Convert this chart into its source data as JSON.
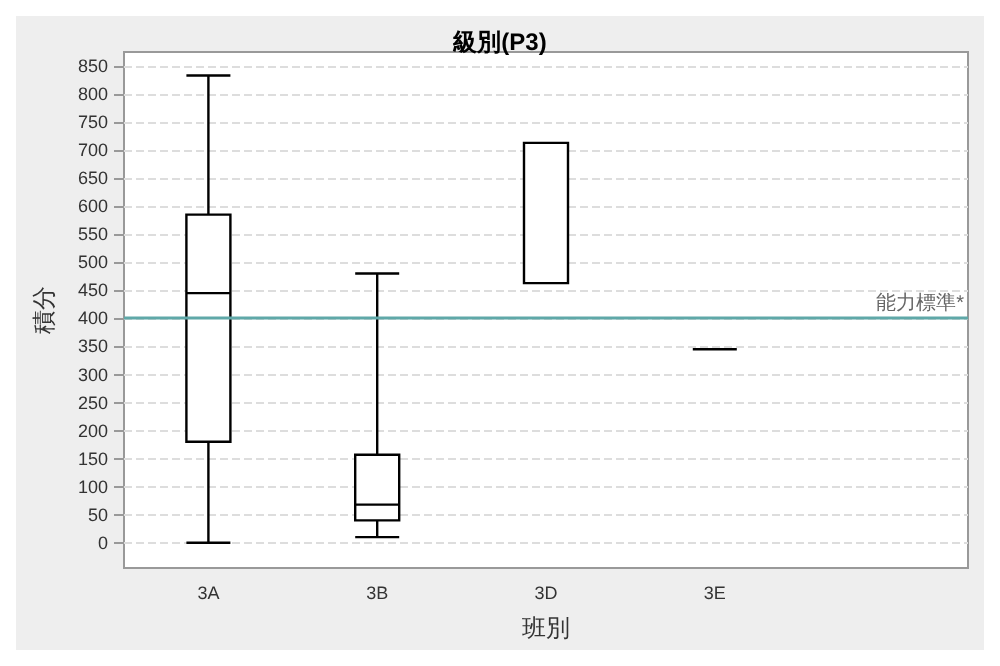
{
  "chart_data": {
    "type": "box",
    "title": "級別(P3)",
    "xlabel": "班別",
    "ylabel": "積分",
    "categories": [
      "3A",
      "3B",
      "3D",
      "3E",
      null
    ],
    "boxes": [
      {
        "low": 0,
        "q1": 180,
        "median": 445,
        "q3": 585,
        "high": 833
      },
      {
        "low": 10,
        "q1": 40,
        "median": 68,
        "q3": 157,
        "high": 480
      },
      {
        "low": 463,
        "q1": 463,
        "median": 713,
        "q3": 713,
        "high": 713
      },
      {
        "low": 345,
        "q1": 345,
        "median": 345,
        "q3": 345,
        "high": 345
      },
      null
    ],
    "color": "#000000",
    "ylim": [
      -45,
      875
    ],
    "yticks": [
      0,
      50,
      100,
      150,
      200,
      250,
      300,
      350,
      400,
      450,
      500,
      550,
      600,
      650,
      700,
      750,
      800,
      850
    ],
    "grid": "y",
    "ref_lines": [
      {
        "axis": "y",
        "value": 400,
        "label": "能力標準*",
        "color": "#5fa8a8"
      }
    ]
  }
}
